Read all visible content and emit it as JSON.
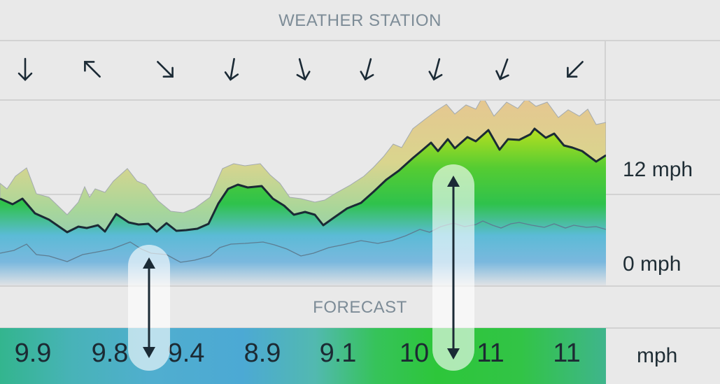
{
  "header": {
    "title": "WEATHER STATION"
  },
  "wind_directions": [
    {
      "icon": "arrow-south-icon",
      "deg": 180
    },
    {
      "icon": "arrow-northwest-icon",
      "deg": 315
    },
    {
      "icon": "arrow-southeast-icon",
      "deg": 135
    },
    {
      "icon": "arrow-south-icon",
      "deg": 190
    },
    {
      "icon": "arrow-south-icon",
      "deg": 165
    },
    {
      "icon": "arrow-south-icon",
      "deg": 195
    },
    {
      "icon": "arrow-south-icon",
      "deg": 195
    },
    {
      "icon": "arrow-south-icon",
      "deg": 200
    },
    {
      "icon": "arrow-southwest-icon",
      "deg": 225
    }
  ],
  "chart": {
    "y_labels": [
      "12 mph",
      "0 mph"
    ],
    "colors": {
      "gust": "#e3c98a",
      "speed": "#34c53a",
      "low": "#6bbad9",
      "line": "#1b2a35"
    }
  },
  "forecast": {
    "title": "FORECAST",
    "values": [
      "9.9",
      "9.8",
      "9.4",
      "8.9",
      "9.1",
      "10",
      "11",
      "11"
    ],
    "unit": "mph"
  },
  "controls": {
    "drag_handle_icon": "double-arrow-vertical-icon"
  }
}
